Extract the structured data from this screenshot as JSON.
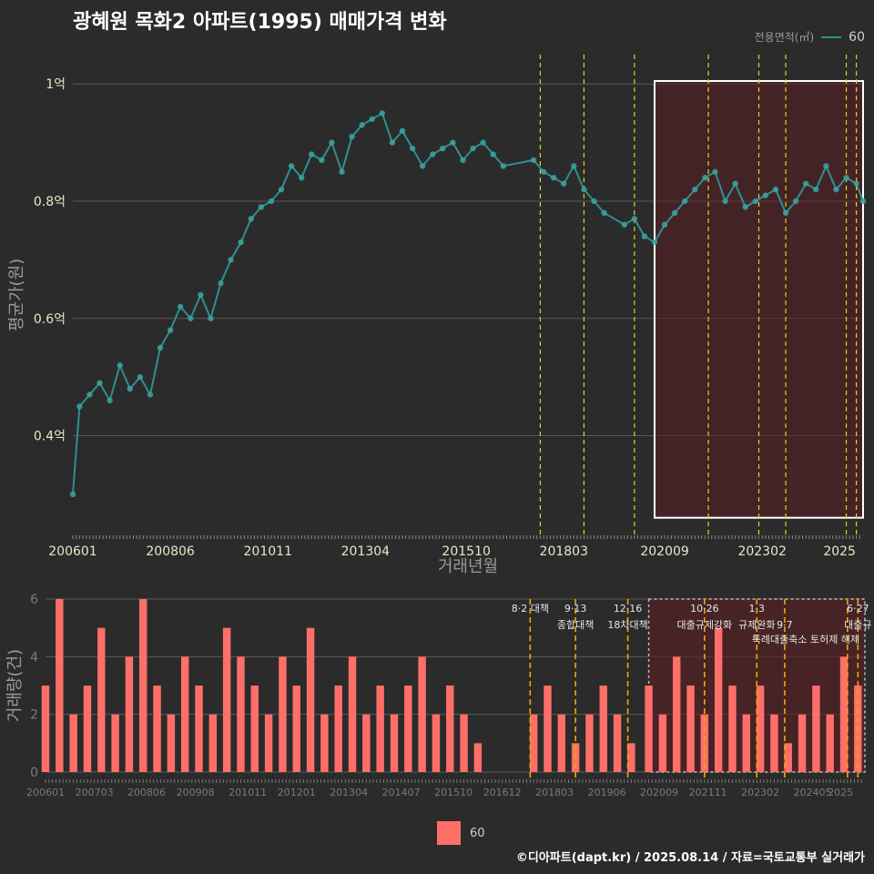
{
  "title": "광혜원 목화2 아파트(1995) 매매가격 변화",
  "legend": {
    "label": "전용면적(㎡)",
    "series": "60"
  },
  "bottom_legend": {
    "series": "60"
  },
  "caption": "©디아파트(dapt.kr) / 2025.08.14 / 자료=국토교통부 실거래가",
  "colors": {
    "line": "#2f8f8f",
    "point": "#3aa4a0",
    "bar": "#ff6f69",
    "vline": "#e6d21a",
    "vline_orange": "#f0a800",
    "highlight": "#5a1e22"
  },
  "chart_data": [
    {
      "type": "line",
      "title": "광혜원 목화2 아파트(1995) 매매가격 변화",
      "xlabel": "거래년월",
      "ylabel": "평균가(원)",
      "x_tick_labels": [
        "200601",
        "200806",
        "201011",
        "201304",
        "201510",
        "201803",
        "202009",
        "202302",
        "2025"
      ],
      "y_tick_labels": [
        "0.4억",
        "0.6억",
        "0.8억",
        "1억"
      ],
      "y_ticks": [
        0.4,
        0.6,
        0.8,
        1.0
      ],
      "ylim": [
        0.23,
        1.05
      ],
      "xlim": [
        "2006-01",
        "2025-08"
      ],
      "grid": true,
      "legend_position": "top-right",
      "series": [
        {
          "name": "60",
          "x": [
            "2006-01",
            "2006-03",
            "2006-06",
            "2006-09",
            "2006-12",
            "2007-03",
            "2007-06",
            "2007-09",
            "2007-12",
            "2008-03",
            "2008-06",
            "2008-09",
            "2008-12",
            "2009-03",
            "2009-06",
            "2009-09",
            "2009-12",
            "2010-03",
            "2010-06",
            "2010-09",
            "2010-12",
            "2011-03",
            "2011-06",
            "2011-09",
            "2011-12",
            "2012-03",
            "2012-06",
            "2012-09",
            "2012-12",
            "2013-03",
            "2013-06",
            "2013-09",
            "2013-12",
            "2014-03",
            "2014-06",
            "2014-09",
            "2014-12",
            "2015-03",
            "2015-06",
            "2015-09",
            "2015-12",
            "2016-03",
            "2016-06",
            "2016-09",
            "2017-06",
            "2017-09",
            "2017-12",
            "2018-03",
            "2018-06",
            "2018-09",
            "2018-12",
            "2019-03",
            "2019-09",
            "2019-12",
            "2020-03",
            "2020-06",
            "2020-09",
            "2020-12",
            "2021-03",
            "2021-06",
            "2021-09",
            "2021-12",
            "2022-03",
            "2022-06",
            "2022-09",
            "2022-12",
            "2023-03",
            "2023-06",
            "2023-09",
            "2023-12",
            "2024-03",
            "2024-06",
            "2024-09",
            "2024-12",
            "2025-03",
            "2025-06",
            "2025-08"
          ],
          "values": [
            0.3,
            0.45,
            0.47,
            0.49,
            0.46,
            0.52,
            0.48,
            0.5,
            0.47,
            0.55,
            0.58,
            0.62,
            0.6,
            0.64,
            0.6,
            0.66,
            0.7,
            0.73,
            0.77,
            0.79,
            0.8,
            0.82,
            0.86,
            0.84,
            0.88,
            0.87,
            0.9,
            0.85,
            0.91,
            0.93,
            0.94,
            0.95,
            0.9,
            0.92,
            0.89,
            0.86,
            0.88,
            0.89,
            0.9,
            0.87,
            0.89,
            0.9,
            0.88,
            0.86,
            0.87,
            0.85,
            0.84,
            0.83,
            0.86,
            0.82,
            0.8,
            0.78,
            0.76,
            0.77,
            0.74,
            0.73,
            0.76,
            0.78,
            0.8,
            0.82,
            0.84,
            0.85,
            0.8,
            0.83,
            0.79,
            0.8,
            0.81,
            0.82,
            0.78,
            0.8,
            0.83,
            0.82,
            0.86,
            0.82,
            0.84,
            0.83,
            0.8
          ]
        }
      ],
      "vlines": [
        "2017-08",
        "2018-09",
        "2019-12",
        "2021-10",
        "2023-01",
        "2023-09",
        "2025-03",
        "2025-06"
      ],
      "highlight_range": [
        "2020-06",
        "2025-08"
      ]
    },
    {
      "type": "bar",
      "ylabel": "거래량(건)",
      "ylim": [
        0,
        6
      ],
      "y_tick_labels": [
        "0",
        "2",
        "4",
        "6"
      ],
      "y_ticks": [
        0,
        2,
        4,
        6
      ],
      "x_tick_labels": [
        "200601",
        "200703",
        "200806",
        "200908",
        "201011",
        "201201",
        "201304",
        "201407",
        "201510",
        "201612",
        "201803",
        "201906",
        "202009",
        "202111",
        "202302",
        "202405",
        "2025"
      ],
      "xlim": [
        "2006-01",
        "2025-08"
      ],
      "series": [
        {
          "name": "60",
          "x": [
            "2006-01",
            "2006-05",
            "2006-09",
            "2007-01",
            "2007-05",
            "2007-09",
            "2008-01",
            "2008-05",
            "2008-09",
            "2009-01",
            "2009-05",
            "2009-09",
            "2010-01",
            "2010-05",
            "2010-09",
            "2011-01",
            "2011-05",
            "2011-09",
            "2012-01",
            "2012-05",
            "2012-09",
            "2013-01",
            "2013-05",
            "2013-09",
            "2014-01",
            "2014-05",
            "2014-09",
            "2015-01",
            "2015-05",
            "2015-09",
            "2016-01",
            "2016-05",
            "2017-09",
            "2018-01",
            "2018-05",
            "2018-09",
            "2019-01",
            "2019-05",
            "2019-09",
            "2020-01",
            "2020-06",
            "2020-10",
            "2021-02",
            "2021-06",
            "2021-10",
            "2022-02",
            "2022-06",
            "2022-10",
            "2023-02",
            "2023-06",
            "2023-10",
            "2024-02",
            "2024-06",
            "2024-10",
            "2025-02",
            "2025-06"
          ],
          "values": [
            3,
            6,
            2,
            3,
            5,
            2,
            4,
            6,
            3,
            2,
            4,
            3,
            2,
            5,
            4,
            3,
            2,
            4,
            3,
            5,
            2,
            3,
            4,
            2,
            3,
            2,
            3,
            4,
            2,
            3,
            2,
            1,
            2,
            3,
            2,
            1,
            2,
            3,
            2,
            1,
            3,
            2,
            4,
            3,
            2,
            5,
            3,
            2,
            3,
            2,
            1,
            2,
            3,
            2,
            4,
            3
          ]
        }
      ],
      "vlines": [
        "2017-08",
        "2018-09",
        "2019-12",
        "2021-10",
        "2023-01",
        "2023-09",
        "2025-03",
        "2025-06"
      ],
      "annotations": [
        {
          "date": "2017-08",
          "line1": "8·2 대책",
          "line2": ""
        },
        {
          "date": "2018-09",
          "line1": "9·13",
          "line2": "종합대책"
        },
        {
          "date": "2019-12",
          "line1": "12·16",
          "line2": "18차대책"
        },
        {
          "date": "2021-10",
          "line1": "10·26",
          "line2": "대출규제강화"
        },
        {
          "date": "2023-01",
          "line1": "1·3",
          "line2": "규제완화"
        },
        {
          "date": "2023-09",
          "line1": "",
          "line2": "9·7"
        },
        {
          "date": "2025-06",
          "line1": "6·27",
          "line2": "대출규"
        }
      ],
      "annotation_extra": "특례대출축소 토허제 해제",
      "highlight_range": [
        "2020-06",
        "2025-08"
      ]
    }
  ]
}
